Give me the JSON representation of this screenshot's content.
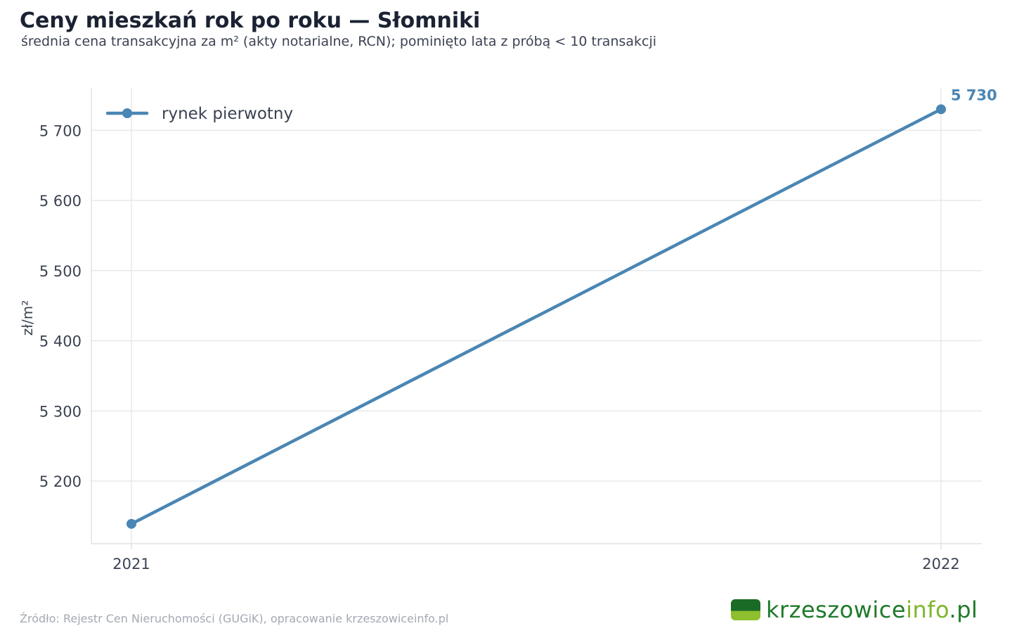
{
  "title": "Ceny mieszkań rok po roku — Słomniki",
  "subtitle": "średnia cena transakcyjna za m² (akty notarialne, RCN); pominięto lata z próbą < 10 transakcji",
  "source": "Źródło: Rejestr Cen Nieruchomości (GUGiK), opracowanie krzeszowiceinfo.pl",
  "logo": {
    "part1": "krzeszowice",
    "part2": "info",
    "part3": ".pl"
  },
  "colors": {
    "series": "#4a86b4",
    "grid": "#e6e8eb",
    "axis": "#dfe2e6"
  },
  "chart_data": {
    "type": "line",
    "title": "Ceny mieszkań rok po roku — Słomniki",
    "subtitle": "średnia cena transakcyjna za m² (akty notarialne, RCN); pominięto lata z próbą < 10 transakcji",
    "xlabel": "",
    "ylabel": "zł/m²",
    "x": [
      "2021",
      "2022"
    ],
    "series": [
      {
        "name": "rynek pierwotny",
        "values": [
          5139,
          5730
        ]
      }
    ],
    "end_label": "5 730",
    "yticks": [
      5200,
      5300,
      5400,
      5500,
      5600,
      5700
    ],
    "ytick_labels": [
      "5 200",
      "5 300",
      "5 400",
      "5 500",
      "5 600",
      "5 700"
    ],
    "ylim": [
      5110,
      5760
    ],
    "grid": true,
    "legend_position": "top-left"
  }
}
